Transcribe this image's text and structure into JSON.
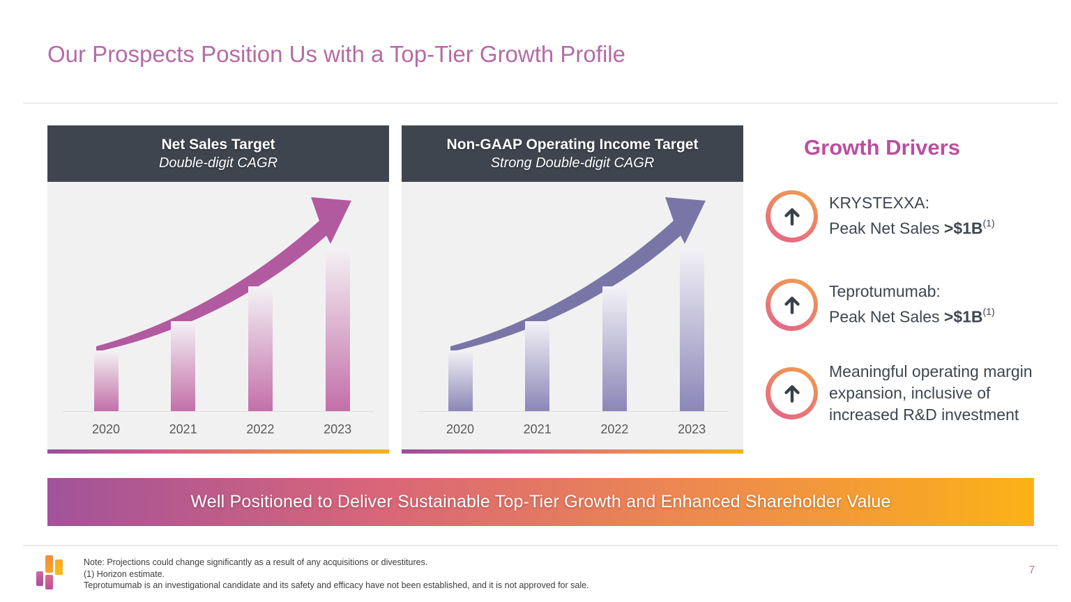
{
  "slide": {
    "title": "Our Prospects Position Us with a Top-Tier Growth Profile",
    "page_number": "7"
  },
  "chart_data": [
    {
      "type": "bar",
      "title": "Net Sales Target",
      "subtitle": "Double-digit CAGR",
      "categories": [
        "2020",
        "2021",
        "2022",
        "2023"
      ],
      "values_relative": [
        0.37,
        0.55,
        0.76,
        1.0
      ],
      "axis_values_shown": false,
      "annotation": "upward curved growth arrow (illustrative, no numeric axis)",
      "colors": {
        "arrow": "#b25a9f",
        "bar": "#c36fa9",
        "bar_top": "#f4f2f4"
      }
    },
    {
      "type": "bar",
      "title": "Non-GAAP Operating Income Target",
      "subtitle": "Strong Double-digit CAGR",
      "categories": [
        "2020",
        "2021",
        "2022",
        "2023"
      ],
      "values_relative": [
        0.37,
        0.55,
        0.76,
        1.0
      ],
      "axis_values_shown": false,
      "annotation": "upward curved growth arrow (illustrative, no numeric axis)",
      "colors": {
        "arrow": "#7a75a7",
        "bar": "#8b86b7",
        "bar_top": "#f3f2f6"
      }
    }
  ],
  "growth_drivers": {
    "heading": "Growth Drivers",
    "icon_name": "circled-up-arrow-icon",
    "items": [
      {
        "line1": "KRYSTEXXA:",
        "line2_prefix": "Peak Net Sales ",
        "line2_bold": ">$1B",
        "line2_sup": "(1)"
      },
      {
        "line1": "Teprotumumab:",
        "line2_prefix": "Peak Net Sales ",
        "line2_bold": ">$1B",
        "line2_sup": "(1)"
      },
      {
        "lines": [
          "Meaningful operating margin",
          "expansion, inclusive of",
          "increased R&D investment"
        ]
      }
    ]
  },
  "banner": {
    "text": "Well Positioned to Deliver Sustainable Top-Tier Growth and Enhanced Shareholder Value"
  },
  "footnotes": [
    "Note:  Projections could change significantly as a result of any acquisitions or divestitures.",
    "(1)  Horizon estimate.",
    "Teprotumumab is an investigational candidate and its safety and efficacy have not been established, and it is not approved for sale."
  ],
  "footer_logo": "horizon-logo",
  "colors": {
    "title_pink": "#b56aa6",
    "heading_pink": "#ba4fa0",
    "header_bg": "#3f454e",
    "panel_bg": "#f2f1f2",
    "text_dark": "#3f4650",
    "page_num": "#d4707c",
    "banner_gradient": [
      "#a1539a",
      "#d96579",
      "#ee8a4e",
      "#fbb216"
    ],
    "accent_gradient": [
      "#9a4e9b",
      "#d4608c",
      "#e98a55",
      "#f2b31f"
    ],
    "ring_gradient": [
      "#f2a04a",
      "#e4618c"
    ]
  }
}
